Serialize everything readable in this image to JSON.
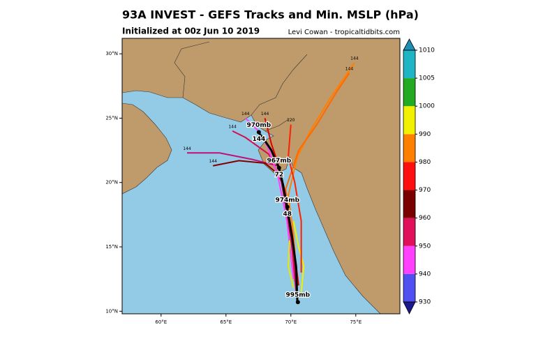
{
  "title": "93A INVEST - GEFS Tracks and Min. MSLP (hPa)",
  "subtitle": "Initialized at 00z Jun 10 2019",
  "credit": "Levi Cowan - tropicaltidbits.com",
  "map": {
    "xlim": [
      57,
      78.4
    ],
    "ylim": [
      9.8,
      31.2
    ],
    "xticks": [
      {
        "value": 60,
        "label": "60°E"
      },
      {
        "value": 65,
        "label": "65°E"
      },
      {
        "value": 70,
        "label": "70°E"
      },
      {
        "value": 75,
        "label": "75°E"
      }
    ],
    "yticks": [
      {
        "value": 10,
        "label": "10°N"
      },
      {
        "value": 15,
        "label": "15°N"
      },
      {
        "value": 20,
        "label": "20°N"
      },
      {
        "value": 25,
        "label": "25°N"
      },
      {
        "value": 30,
        "label": "30°N"
      }
    ],
    "tracks": [
      {
        "color": "#ff8000",
        "points": [
          [
            70.5,
            12
          ],
          [
            70.2,
            16
          ],
          [
            69.8,
            19
          ],
          [
            70.5,
            22
          ],
          [
            71.5,
            24
          ],
          [
            73,
            26.5
          ],
          [
            74.9,
            29.3
          ]
        ],
        "end_label": "144"
      },
      {
        "color": "#ff6a00",
        "points": [
          [
            70.3,
            12.3
          ],
          [
            70.0,
            16
          ],
          [
            69.6,
            19.5
          ],
          [
            70.6,
            22.5
          ],
          [
            72,
            24.5
          ],
          [
            73.5,
            27
          ],
          [
            74.5,
            28.5
          ]
        ],
        "end_label": "144"
      },
      {
        "color": "#c0107a",
        "points": [
          [
            70.4,
            11.5
          ],
          [
            70.0,
            16
          ],
          [
            69.4,
            19.5
          ],
          [
            69,
            21.3
          ],
          [
            67,
            21.8
          ],
          [
            64.5,
            22.3
          ],
          [
            62,
            22.3
          ]
        ],
        "end_label": "144"
      },
      {
        "color": "#800000",
        "points": [
          [
            70.5,
            12
          ],
          [
            69.8,
            17
          ],
          [
            69.2,
            20.5
          ],
          [
            68,
            21.5
          ],
          [
            66,
            21.7
          ],
          [
            64,
            21.3
          ]
        ],
        "end_label": "144"
      },
      {
        "color": "#e00000",
        "points": [
          [
            70.6,
            12
          ],
          [
            70.1,
            16
          ],
          [
            69.5,
            19.5
          ],
          [
            69,
            21.5
          ],
          [
            68.5,
            23
          ],
          [
            68,
            25
          ]
        ],
        "end_label": "144"
      },
      {
        "color": "#d01050",
        "points": [
          [
            70.4,
            12.2
          ],
          [
            69.9,
            16.5
          ],
          [
            69.3,
            20
          ],
          [
            68.3,
            22.2
          ],
          [
            66.5,
            23.5
          ],
          [
            65.5,
            24
          ]
        ],
        "end_label": "144"
      },
      {
        "color": "#ff40ff",
        "points": [
          [
            70.2,
            12.5
          ],
          [
            69.7,
            17
          ],
          [
            69.0,
            20.5
          ],
          [
            68.2,
            22.8
          ],
          [
            67.5,
            24
          ],
          [
            66.5,
            25
          ]
        ],
        "end_label": "144"
      },
      {
        "color": "#f0f000",
        "points": [
          [
            70.8,
            11.5
          ],
          [
            71,
            13.5
          ],
          [
            70.6,
            15
          ],
          [
            70.2,
            17
          ]
        ]
      },
      {
        "color": "#e8e800",
        "points": [
          [
            70.2,
            11.8
          ],
          [
            69.8,
            13.5
          ],
          [
            69.9,
            15.5
          ]
        ]
      },
      {
        "color": "#ff2000",
        "points": [
          [
            70.8,
            13
          ],
          [
            70.8,
            17
          ],
          [
            70.3,
            20
          ],
          [
            69.8,
            22
          ],
          [
            70,
            24.5
          ]
        ],
        "end_label": "120"
      }
    ],
    "mean_track": {
      "color": "#000000",
      "points": [
        [
          70.5,
          10.7
        ],
        [
          70.4,
          13.5
        ],
        [
          70.1,
          15.7
        ],
        [
          69.7,
          18.1
        ],
        [
          69.4,
          19.8
        ],
        [
          69.1,
          21.1
        ],
        [
          68.5,
          22.5
        ],
        [
          67.96,
          23.3
        ],
        [
          67.5,
          23.9
        ]
      ]
    },
    "markers": [
      {
        "lon": 70.54,
        "lat": 10.71,
        "mslp": "995mb"
      },
      {
        "lon": 69.73,
        "lat": 18.1,
        "mslp": "974mb",
        "hour": "48"
      },
      {
        "lon": 69.09,
        "lat": 21.14,
        "mslp": "967mb",
        "hour": "72"
      },
      {
        "lon": 67.53,
        "lat": 23.91,
        "mslp": "970mb",
        "hour": "144"
      }
    ]
  },
  "colorbar": {
    "levels": [
      930,
      940,
      950,
      960,
      970,
      980,
      990,
      1000,
      1005,
      1010
    ],
    "colors": [
      "#5050f0",
      "#ff40ff",
      "#e0105a",
      "#7a0000",
      "#ff1010",
      "#ff8000",
      "#f0f000",
      "#22aa22",
      "#20b5c5"
    ],
    "under_color": "#1a1a8a",
    "over_color": "#1f8fb5"
  }
}
